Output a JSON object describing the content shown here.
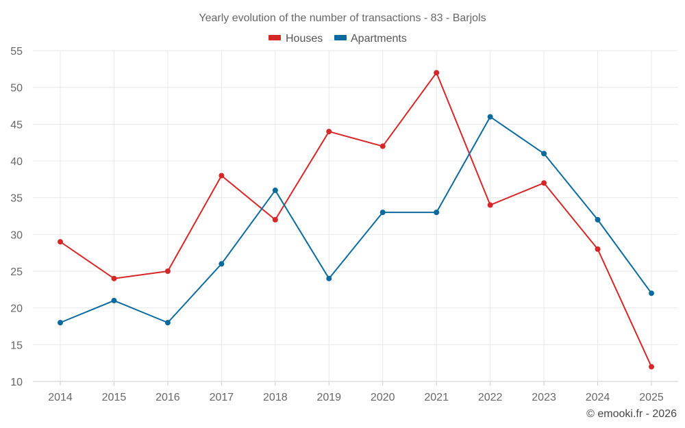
{
  "chart_data": {
    "type": "line",
    "title": "Yearly evolution of the number of transactions - 83 - Barjols",
    "categories": [
      "2014",
      "2015",
      "2016",
      "2017",
      "2018",
      "2019",
      "2020",
      "2021",
      "2022",
      "2023",
      "2024",
      "2025"
    ],
    "series": [
      {
        "name": "Houses",
        "color": "#d62728",
        "values": [
          29,
          24,
          25,
          38,
          32,
          44,
          42,
          52,
          34,
          37,
          28,
          12
        ]
      },
      {
        "name": "Apartments",
        "color": "#0a6a9e",
        "values": [
          18,
          21,
          18,
          26,
          36,
          24,
          33,
          33,
          46,
          41,
          32,
          22
        ]
      }
    ],
    "ylim": [
      10,
      55
    ],
    "yticks": [
      10,
      15,
      20,
      25,
      30,
      35,
      40,
      45,
      50,
      55
    ],
    "grid": true,
    "legend": "top-center",
    "xlabel": "",
    "ylabel": ""
  },
  "credit": "© emooki.fr - 2026"
}
